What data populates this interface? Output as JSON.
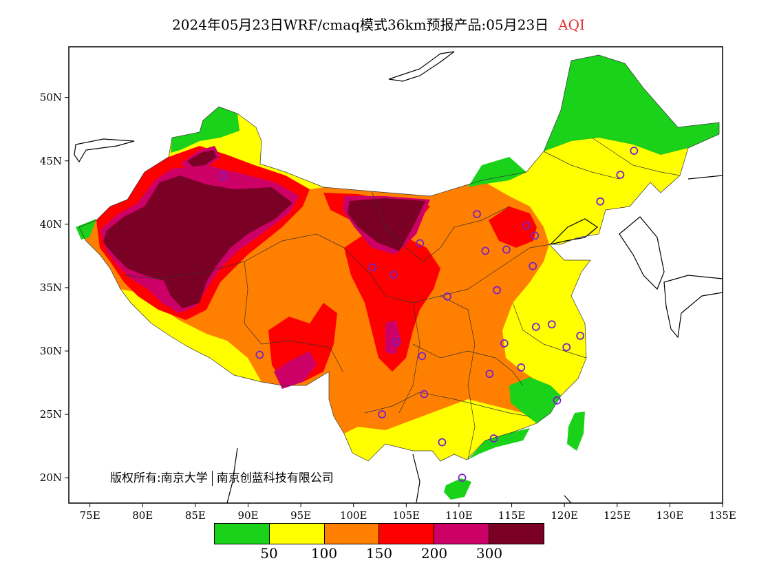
{
  "title": {
    "main": "2024年05月23日WRF/cmaq模式36km预报产品:05月23日",
    "variable": "AQI"
  },
  "axes": {
    "x_ticks": [
      "75E",
      "80E",
      "85E",
      "90E",
      "95E",
      "100E",
      "105E",
      "110E",
      "115E",
      "120E",
      "125E",
      "130E",
      "135E"
    ],
    "y_ticks": [
      "50N",
      "45N",
      "40N",
      "35N",
      "30N",
      "25N",
      "20N"
    ]
  },
  "copyright": {
    "part1": "版权所有:南京大学",
    "part2": "南京创蓝科技有限公司"
  },
  "legend": {
    "colors": [
      "#19d219",
      "#ffff00",
      "#ff7f00",
      "#ff0000",
      "#cc0066",
      "#7a0026"
    ],
    "labels": [
      "50",
      "100",
      "150",
      "200",
      "300"
    ]
  },
  "stations": [
    {
      "lon": 87.6,
      "lat": 43.8
    },
    {
      "lon": 91.1,
      "lat": 29.7
    },
    {
      "lon": 101.8,
      "lat": 36.6
    },
    {
      "lon": 103.8,
      "lat": 36.0
    },
    {
      "lon": 106.3,
      "lat": 38.5
    },
    {
      "lon": 111.7,
      "lat": 40.8
    },
    {
      "lon": 112.5,
      "lat": 37.9
    },
    {
      "lon": 114.5,
      "lat": 38.0
    },
    {
      "lon": 116.4,
      "lat": 39.9
    },
    {
      "lon": 117.2,
      "lat": 39.1
    },
    {
      "lon": 117.0,
      "lat": 36.7
    },
    {
      "lon": 113.6,
      "lat": 34.8
    },
    {
      "lon": 108.9,
      "lat": 34.3
    },
    {
      "lon": 104.1,
      "lat": 30.7
    },
    {
      "lon": 106.5,
      "lat": 29.6
    },
    {
      "lon": 106.7,
      "lat": 26.6
    },
    {
      "lon": 102.7,
      "lat": 25.0
    },
    {
      "lon": 108.4,
      "lat": 22.8
    },
    {
      "lon": 113.3,
      "lat": 23.1
    },
    {
      "lon": 110.3,
      "lat": 20.0
    },
    {
      "lon": 112.9,
      "lat": 28.2
    },
    {
      "lon": 114.3,
      "lat": 30.6
    },
    {
      "lon": 115.9,
      "lat": 28.7
    },
    {
      "lon": 117.3,
      "lat": 31.9
    },
    {
      "lon": 118.8,
      "lat": 32.1
    },
    {
      "lon": 120.2,
      "lat": 30.3
    },
    {
      "lon": 121.5,
      "lat": 31.2
    },
    {
      "lon": 119.3,
      "lat": 26.1
    },
    {
      "lon": 123.4,
      "lat": 41.8
    },
    {
      "lon": 125.3,
      "lat": 43.9
    },
    {
      "lon": 126.6,
      "lat": 45.8
    }
  ]
}
